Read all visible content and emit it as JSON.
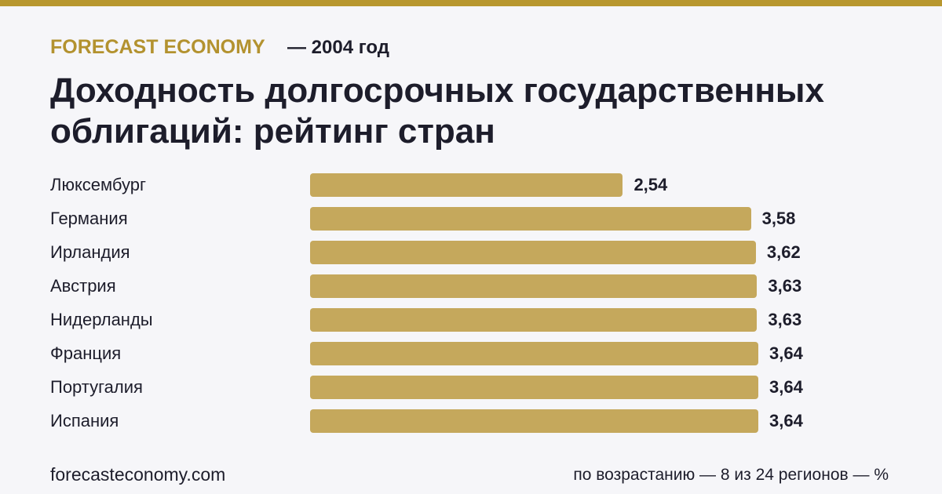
{
  "chart_data": {
    "type": "bar",
    "brand": "FORECAST ECONOMY",
    "subtitle": "— 2004 год",
    "title": "Доходность долгосрочных государственных облигаций: рейтинг стран",
    "categories": [
      "Люксембург",
      "Германия",
      "Ирландия",
      "Австрия",
      "Нидерланды",
      "Франция",
      "Португалия",
      "Испания"
    ],
    "values": [
      2.54,
      3.58,
      3.62,
      3.63,
      3.63,
      3.64,
      3.64,
      3.64
    ],
    "value_labels": [
      "2,54",
      "3,58",
      "3,62",
      "3,63",
      "3,63",
      "3,64",
      "3,64",
      "3,64"
    ],
    "color": "#c5a85c",
    "source": "forecasteconomy.com",
    "note": "по возрастанию — 8 из 24 регионов — %"
  }
}
